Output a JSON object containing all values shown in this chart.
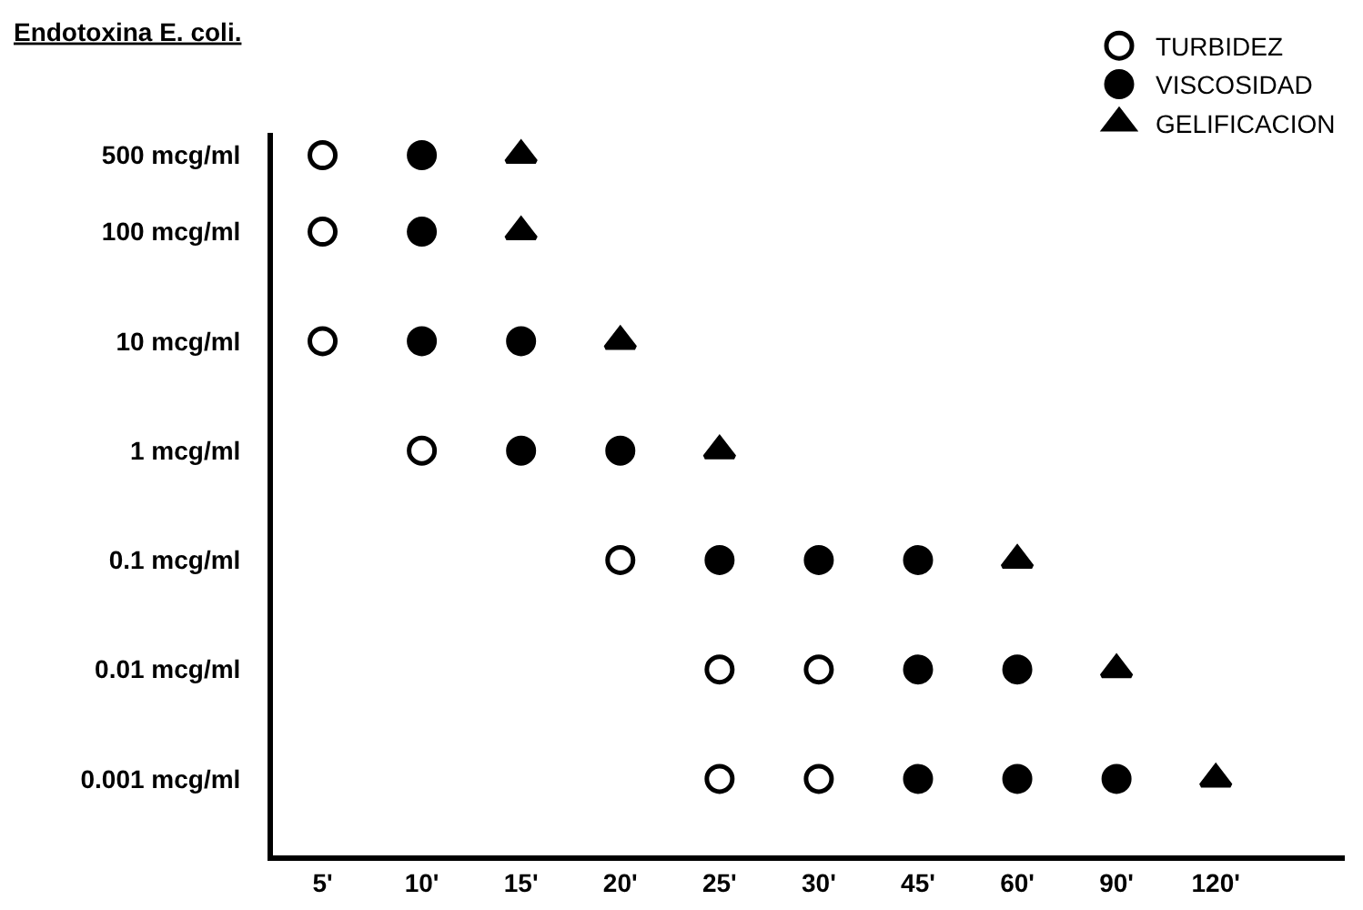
{
  "chart_data": {
    "type": "scatter",
    "title": "Endotoxina E. coli.",
    "categories": [
      "5'",
      "10'",
      "15'",
      "20'",
      "25'",
      "30'",
      "45'",
      "60'",
      "90'",
      "120'"
    ],
    "log": "y",
    "ylim": [
      0.0002,
      800
    ],
    "yticks": [
      {
        "value": 500,
        "label": "500 mcg/ml"
      },
      {
        "value": 100,
        "label": "100 mcg/ml"
      },
      {
        "value": 10,
        "label": "10 mcg/ml"
      },
      {
        "value": 1,
        "label": "1 mcg/ml"
      },
      {
        "value": 0.1,
        "label": "0.1 mcg/ml"
      },
      {
        "value": 0.01,
        "label": "0.01 mcg/ml"
      },
      {
        "value": 0.001,
        "label": "0.001 mcg/ml"
      }
    ],
    "grid": false,
    "legend": "top right",
    "series": [
      {
        "name": "TURBIDEZ",
        "color": "#ffffff",
        "marker": "circle",
        "x": [
          "5'",
          "5'",
          "5'",
          "10'",
          "20'",
          "25'",
          "30'",
          "25'",
          "30'"
        ],
        "values": [
          500,
          100,
          10,
          1,
          0.1,
          0.01,
          0.01,
          0.001,
          0.001
        ]
      },
      {
        "name": "VISCOSIDAD",
        "color": "#000000",
        "marker": "circle",
        "x": [
          "10'",
          "10'",
          "10'",
          "15'",
          "15'",
          "20'",
          "25'",
          "30'",
          "45'",
          "45'",
          "60'",
          "45'",
          "60'",
          "90'"
        ],
        "values": [
          500,
          100,
          10,
          10,
          1,
          1,
          0.1,
          0.1,
          0.1,
          0.01,
          0.01,
          0.001,
          0.001,
          0.001
        ]
      },
      {
        "name": "GELIFICACION",
        "color": "#000000",
        "marker": "triangle",
        "x": [
          "15'",
          "15'",
          "20'",
          "25'",
          "60'",
          "90'",
          "120'"
        ],
        "values": [
          500,
          100,
          10,
          1,
          0.1,
          0.01,
          0.001
        ]
      }
    ]
  }
}
